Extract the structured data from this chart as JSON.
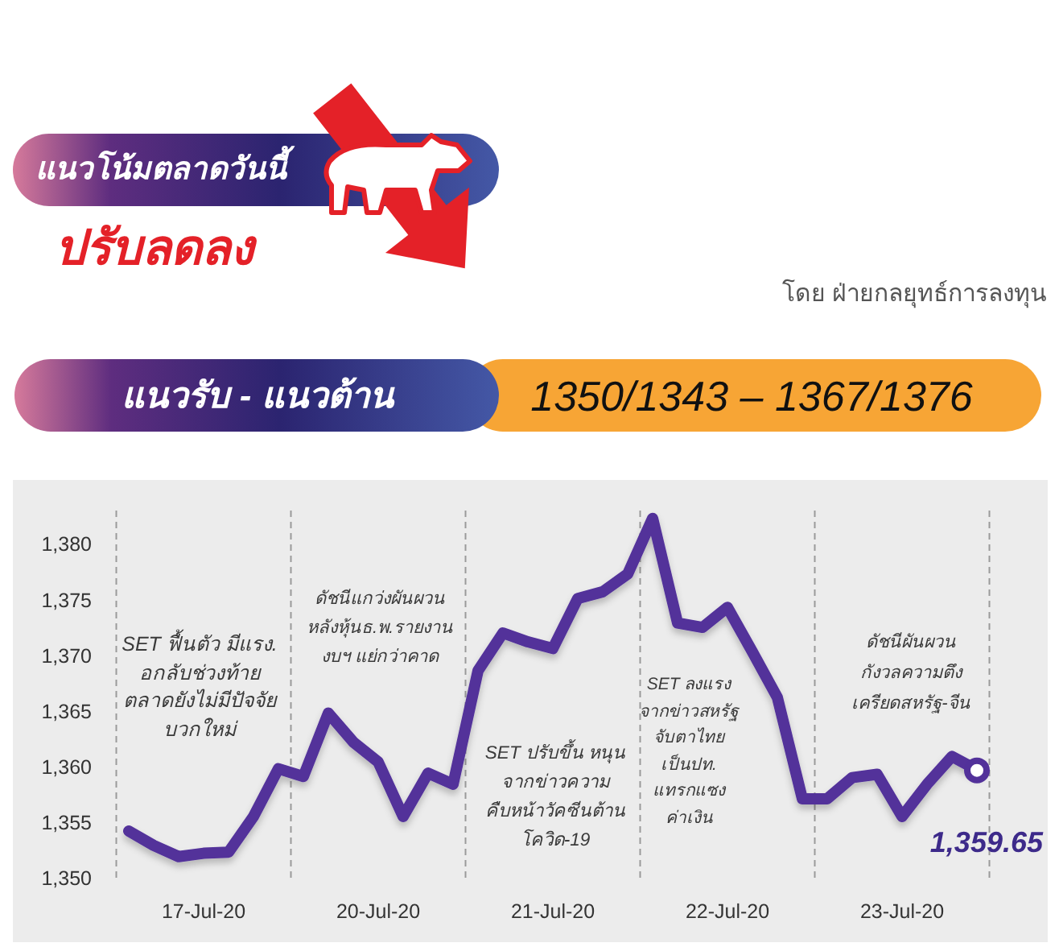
{
  "chart_data": {
    "type": "line",
    "title": "แนวโน้มตลาดวันนี้",
    "subtitle": "ปรับลดลง",
    "annotations": [
      "โดย ฝ่ายกลยุทธ์การลงทุน",
      "แนวรับ - แนวต้าน",
      "1350/1343 – 1367/1376",
      "SET ฟื้นตัว มีแรง.\nอกลับช่วงท้าย\nตลาดยังไม่มีปัจจัย\nบวกใหม่",
      "ดัชนีแกว่งผันผวน\nหลังหุ้นธ.พ.รายงาน\nงบฯ แย่กว่าคาด",
      "SET ปรับขึ้น หนุน\nจากข่าวความ\nคืบหน้าวัคซีนต้าน\nโควิด-19",
      "SET ลงแรง\nจากข่าวสหรัฐ\nจับตาไทย\nเป็นปท.\nแทรกแซง\nค่าเงิน",
      "ดัชนีผันผวน\nกังวลความตึง\nเครียดสหรัฐ-จีน"
    ],
    "categories": [
      null,
      null,
      null,
      "17-Jul-20",
      null,
      null,
      null,
      null,
      null,
      null,
      "20-Jul-20",
      null,
      null,
      null,
      null,
      null,
      null,
      "21-Jul-20",
      null,
      null,
      null,
      null,
      null,
      null,
      "22-Jul-20",
      null,
      null,
      null,
      null,
      null,
      null,
      "23-Jul-20",
      null,
      null,
      null
    ],
    "series": [
      {
        "color": "#52319a",
        "values": [
          1354.2,
          1352.9,
          1351.9,
          1352.2,
          1352.3,
          1355.5,
          1359.8,
          1359.1,
          1364.8,
          1362.2,
          1360.4,
          1355.5,
          1359.4,
          1358.4,
          1368.6,
          1372.0,
          1371.2,
          1370.6,
          1375.1,
          1375.7,
          1377.3,
          1382.3,
          1372.9,
          1372.5,
          1374.3,
          1370.3,
          1366.2,
          1357.1,
          1357.1,
          1359.0,
          1359.3,
          1355.5,
          1358.4,
          1360.9,
          1359.7
        ]
      },
      {
        "type": "scatter",
        "color": "#52319a",
        "marker": "circle",
        "values": [
          null,
          null,
          null,
          null,
          null,
          null,
          null,
          null,
          null,
          null,
          null,
          null,
          null,
          null,
          null,
          null,
          null,
          null,
          null,
          null,
          null,
          null,
          null,
          null,
          null,
          null,
          null,
          null,
          null,
          null,
          null,
          null,
          null,
          null,
          1359.65
        ],
        "value_labels": [
          null,
          null,
          null,
          null,
          null,
          null,
          null,
          null,
          null,
          null,
          null,
          null,
          null,
          null,
          null,
          null,
          null,
          null,
          null,
          null,
          null,
          null,
          null,
          null,
          null,
          null,
          null,
          null,
          null,
          null,
          null,
          null,
          null,
          null,
          "1,359.65"
        ]
      }
    ],
    "ylim": [
      1350,
      1383
    ],
    "yticks": [
      {
        "value": 1350,
        "label": "1,350"
      },
      {
        "value": 1355,
        "label": "1,355"
      },
      {
        "value": 1360,
        "label": "1,360"
      },
      {
        "value": 1365,
        "label": "1,365"
      },
      {
        "value": 1370,
        "label": "1,370"
      },
      {
        "value": 1375,
        "label": "1,375"
      },
      {
        "value": 1380,
        "label": "1,380"
      }
    ]
  }
}
